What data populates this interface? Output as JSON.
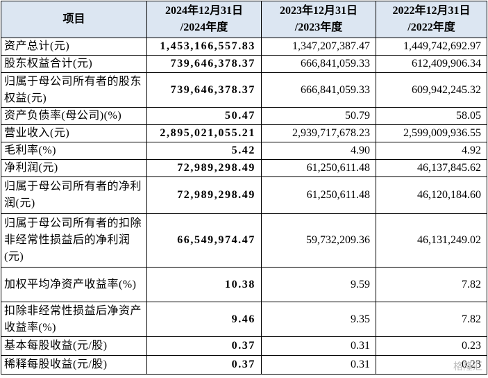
{
  "table": {
    "header": [
      "项目",
      "2024年12月31日\n/2024年度",
      "2023年12月31日\n/2023年度",
      "2022年12月31日\n/2022年度"
    ],
    "rows": [
      [
        "资产总计(元)",
        "1,453,166,557.83",
        "1,347,207,387.47",
        "1,449,742,692.97"
      ],
      [
        "股东权益合计(元)",
        "739,646,378.37",
        "666,841,059.33",
        "612,409,906.34"
      ],
      [
        "归属于母公司所有者的股东权益(元)",
        "739,646,378.37",
        "666,841,059.33",
        "609,942,245.32"
      ],
      [
        "资产负债率(母公司)(%)",
        "50.47",
        "50.79",
        "58.05"
      ],
      [
        "营业收入(元)",
        "2,895,021,055.21",
        "2,939,717,678.23",
        "2,599,009,936.55"
      ],
      [
        "毛利率(%)",
        "5.42",
        "4.90",
        "4.92"
      ],
      [
        "净利润(元)",
        "72,989,298.49",
        "61,250,611.48",
        "46,137,845.62"
      ],
      [
        "归属于母公司所有者的净利润(元)",
        "72,989,298.49",
        "61,250,611.48",
        "46,120,184.60"
      ],
      [
        "归属于母公司所有者的扣除非经常性损益后的净利润(元)",
        "66,549,974.47",
        "59,732,209.36",
        "46,131,249.02"
      ],
      [
        "加权平均净资产收益率(%)",
        "10.38",
        "9.59",
        "7.82"
      ],
      [
        "扣除非经常性损益后净资产收益率(%)",
        "9.46",
        "9.35",
        "7.82"
      ],
      [
        "基本每股收益(元/股)",
        "0.37",
        "0.31",
        "0.23"
      ],
      [
        "稀释每股收益(元/股)",
        "0.37",
        "0.31",
        "0.23"
      ]
    ]
  },
  "watermark": "格隆汇"
}
